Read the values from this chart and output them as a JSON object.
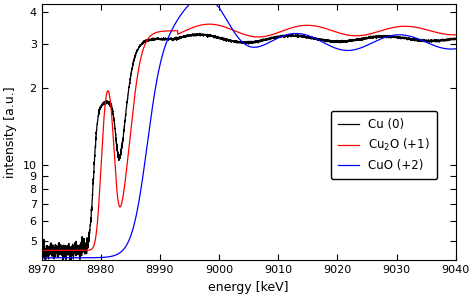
{
  "xlabel": "energy [keV]",
  "ylabel": "intensity [a.u.]",
  "xlim": [
    8970,
    9040
  ],
  "ylim": [
    0.42,
    4.3
  ],
  "colors": [
    "black",
    "red",
    "blue"
  ],
  "legend_labels": [
    "Cu (0)",
    "Cu$_2$O (+1)",
    "CuO (+2)"
  ],
  "ytick_vals": [
    0.5,
    0.6,
    0.7,
    0.8,
    0.9,
    1.0,
    2.0,
    3.0,
    4.0
  ],
  "ytick_labels": [
    "5",
    "6",
    "7",
    "8",
    "9",
    "10",
    "2",
    "3",
    "4"
  ],
  "xticks": [
    8970,
    8980,
    8990,
    9000,
    9010,
    9020,
    9030,
    9040
  ],
  "background": "#ffffff",
  "seed": 12345
}
